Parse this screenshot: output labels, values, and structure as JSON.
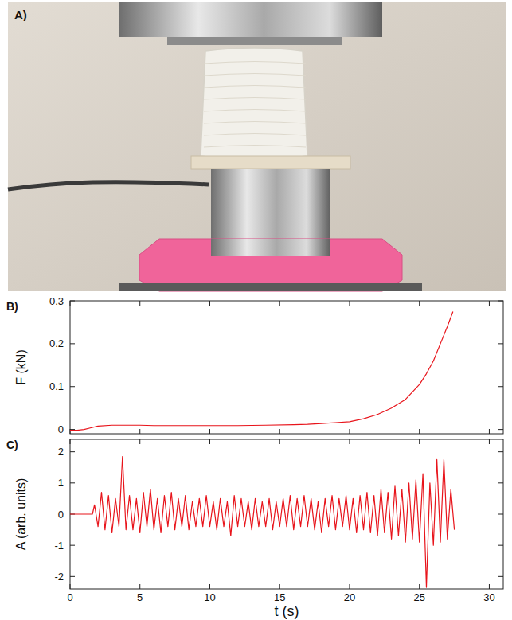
{
  "photo": {
    "label": "A)"
  },
  "chart_data": [
    {
      "type": "line",
      "title": "B)",
      "y_label": "F (kN)",
      "color": "#e8141b",
      "xlim": [
        0,
        31
      ],
      "ylim": [
        -0.01,
        0.3
      ],
      "xticks": [
        0,
        5,
        10,
        15,
        20,
        25,
        30
      ],
      "yticks": [
        0,
        0.1,
        0.2,
        0.3
      ],
      "tick_labels": "y",
      "grid": false,
      "x": [
        0,
        0.5,
        1,
        1.5,
        2,
        3,
        4,
        5,
        6,
        8,
        10,
        12,
        14,
        16,
        17,
        18,
        19,
        20,
        21,
        22,
        23,
        24,
        25,
        25.5,
        26,
        26.5,
        27,
        27.4
      ],
      "values": [
        -0.002,
        -0.002,
        0,
        0.004,
        0.008,
        0.01,
        0.01,
        0.01,
        0.009,
        0.009,
        0.009,
        0.009,
        0.01,
        0.011,
        0.012,
        0.014,
        0.016,
        0.018,
        0.025,
        0.035,
        0.05,
        0.07,
        0.105,
        0.13,
        0.16,
        0.2,
        0.24,
        0.275
      ]
    },
    {
      "type": "line",
      "title": "C)",
      "x_label": "t (s)",
      "y_label": "A (arb. units)",
      "color": "#e8141b",
      "xlim": [
        0,
        31
      ],
      "ylim": [
        -2.4,
        2.4
      ],
      "xticks": [
        0,
        5,
        10,
        15,
        20,
        25,
        30
      ],
      "yticks": [
        -2,
        -1,
        0,
        1,
        2
      ],
      "grid": false,
      "x": [
        0,
        1.6,
        1.75,
        2,
        2.25,
        2.5,
        2.75,
        3,
        3.25,
        3.5,
        3.75,
        4,
        4.25,
        4.5,
        4.75,
        5,
        5.25,
        5.5,
        5.75,
        6,
        6.25,
        6.5,
        6.75,
        7,
        7.25,
        7.5,
        7.75,
        8,
        8.25,
        8.5,
        8.75,
        9,
        9.25,
        9.5,
        9.75,
        10,
        10.25,
        10.5,
        10.75,
        11,
        11.25,
        11.5,
        11.75,
        12,
        12.25,
        12.5,
        12.75,
        13,
        13.25,
        13.5,
        13.75,
        14,
        14.25,
        14.5,
        14.75,
        15,
        15.25,
        15.5,
        15.75,
        16,
        16.25,
        16.5,
        16.75,
        17,
        17.25,
        17.5,
        17.75,
        18,
        18.25,
        18.5,
        18.75,
        19,
        19.25,
        19.5,
        19.75,
        20,
        20.25,
        20.5,
        20.75,
        21,
        21.25,
        21.5,
        21.75,
        22,
        22.25,
        22.5,
        22.75,
        23,
        23.25,
        23.5,
        23.75,
        24,
        24.25,
        24.5,
        24.75,
        25,
        25.25,
        25.5,
        25.75,
        26,
        26.25,
        26.5,
        26.75,
        27,
        27.25,
        27.5
      ],
      "values": [
        0,
        0,
        0.3,
        -0.4,
        0.7,
        -0.5,
        0.6,
        -0.6,
        0.5,
        -0.4,
        1.85,
        -0.5,
        0.6,
        -0.5,
        0.5,
        -0.6,
        0.7,
        -0.4,
        0.8,
        -0.5,
        0.5,
        -0.6,
        0.6,
        -0.4,
        0.7,
        -0.5,
        0.5,
        -0.4,
        0.6,
        -0.5,
        0.4,
        -0.4,
        0.5,
        -0.4,
        0.6,
        -0.4,
        0.4,
        -0.5,
        0.5,
        -0.4,
        0.4,
        -0.7,
        0.6,
        -0.4,
        0.5,
        -0.4,
        0.4,
        -0.5,
        0.5,
        -0.4,
        0.4,
        -0.4,
        0.5,
        -0.5,
        0.4,
        -0.4,
        0.5,
        -0.4,
        0.6,
        -0.5,
        0.5,
        -0.4,
        0.6,
        -0.4,
        0.5,
        -0.5,
        0.4,
        -0.6,
        0.5,
        -0.4,
        0.6,
        -0.5,
        0.5,
        -0.4,
        0.6,
        -0.5,
        0.5,
        -0.6,
        0.6,
        -0.5,
        0.7,
        -0.6,
        0.6,
        -0.7,
        0.8,
        -0.6,
        0.7,
        -0.8,
        0.9,
        -0.7,
        0.8,
        -0.9,
        1.0,
        -0.8,
        1.1,
        -0.9,
        1.3,
        -2.35,
        1.0,
        -1.0,
        1.75,
        -0.9,
        1.75,
        -0.8,
        0.8,
        -0.5
      ]
    }
  ]
}
